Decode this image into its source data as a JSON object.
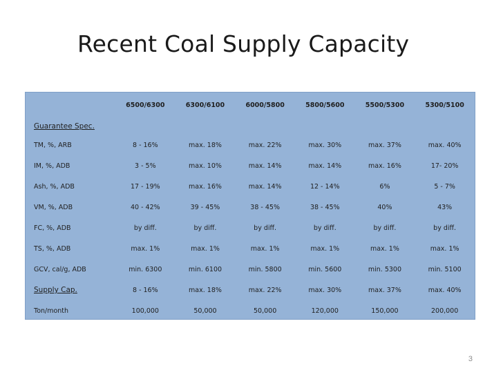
{
  "slide": {
    "title": "Recent Coal Supply Capacity",
    "page_number": "3"
  },
  "table": {
    "columns": [
      "6500/6300",
      "6300/6100",
      "6000/5800",
      "5800/5600",
      "5500/5300",
      "5300/5100"
    ],
    "guarantee_section_label": "Guarantee Spec.",
    "rows": [
      {
        "label": "TM, %, ARB",
        "values": [
          "8 - 16%",
          "max. 18%",
          "max. 22%",
          "max. 30%",
          "max. 37%",
          "max. 40%"
        ]
      },
      {
        "label": "IM, %, ADB",
        "values": [
          "3 - 5%",
          "max. 10%",
          "max. 14%",
          "max. 14%",
          "max. 16%",
          "17- 20%"
        ]
      },
      {
        "label": "Ash, %, ADB",
        "values": [
          "17 - 19%",
          "max. 16%",
          "max. 14%",
          "12 - 14%",
          "6%",
          "5 - 7%"
        ]
      },
      {
        "label": "VM, %, ADB",
        "values": [
          "40 - 42%",
          "39 - 45%",
          "38 - 45%",
          "38 - 45%",
          "40%",
          "43%"
        ]
      },
      {
        "label": "FC, %, ADB",
        "values": [
          "by diff.",
          "by diff.",
          "by diff.",
          "by diff.",
          "by diff.",
          "by diff."
        ]
      },
      {
        "label": "TS, %, ADB",
        "values": [
          "max. 1%",
          "max. 1%",
          "max. 1%",
          "max. 1%",
          "max. 1%",
          "max. 1%"
        ]
      },
      {
        "label": "GCV, cal/g, ADB",
        "values": [
          "min. 6300",
          "min. 6100",
          "min. 5800",
          "min. 5600",
          "min. 5300",
          "min. 5100"
        ]
      }
    ],
    "supply_row": {
      "label": "Supply Cap.",
      "values": [
        "8 - 16%",
        "max. 18%",
        "max. 22%",
        "max. 30%",
        "max. 37%",
        "max. 40%"
      ]
    },
    "tonnage_row": {
      "label": "Ton/month",
      "values": [
        "100,000",
        "50,000",
        "50,000",
        "120,000",
        "150,000",
        "200,000"
      ]
    }
  }
}
